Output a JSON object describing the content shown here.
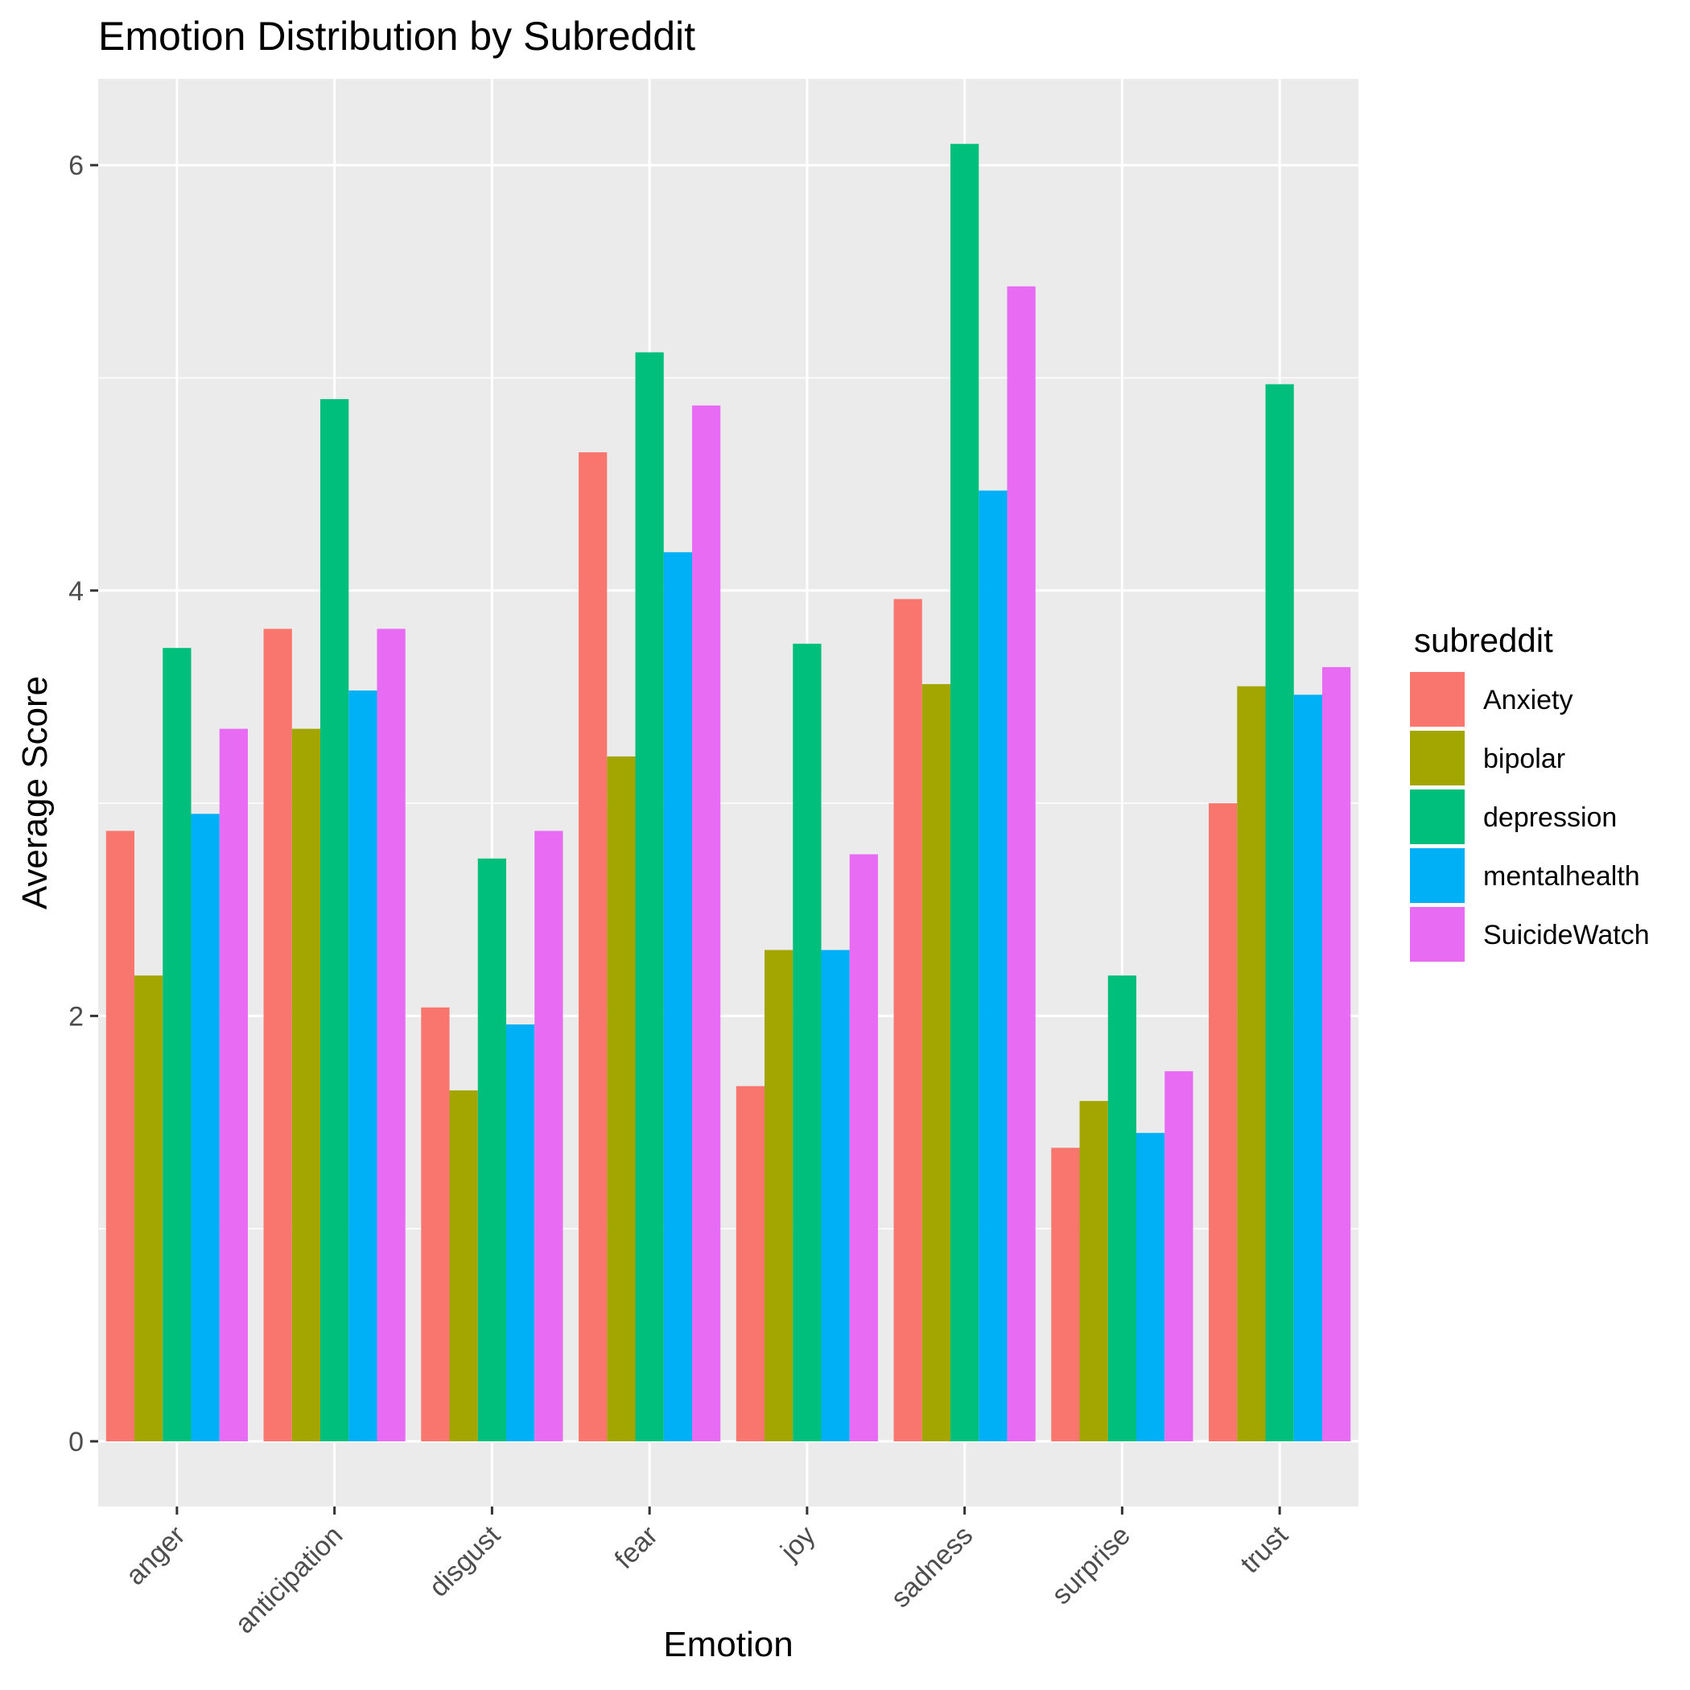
{
  "chart_data": {
    "type": "bar",
    "title": "Emotion Distribution by Subreddit",
    "xlabel": "Emotion",
    "ylabel": "Average Score",
    "categories": [
      "anger",
      "anticipation",
      "disgust",
      "fear",
      "joy",
      "sadness",
      "surprise",
      "trust"
    ],
    "yticks": [
      "0",
      "2",
      "4",
      "6"
    ],
    "ylim": [
      -0.29,
      6.3
    ],
    "grid": true,
    "legend": {
      "title": "subreddit",
      "position": "right"
    },
    "series": [
      {
        "name": "Anxiety",
        "color": "#F8766D",
        "values": [
          2.87,
          3.82,
          2.04,
          4.65,
          1.67,
          3.96,
          1.38,
          3.0
        ]
      },
      {
        "name": "bipolar",
        "color": "#A3A500",
        "values": [
          2.19,
          3.35,
          1.65,
          3.22,
          2.31,
          3.56,
          1.6,
          3.55
        ]
      },
      {
        "name": "depression",
        "color": "#00BF7D",
        "values": [
          3.73,
          4.9,
          2.74,
          5.12,
          3.75,
          6.1,
          2.19,
          4.97
        ]
      },
      {
        "name": "mentalhealth",
        "color": "#00B0F6",
        "values": [
          2.95,
          3.53,
          1.96,
          4.18,
          2.31,
          4.47,
          1.45,
          3.51
        ]
      },
      {
        "name": "SuicideWatch",
        "color": "#E76BF3",
        "values": [
          3.35,
          3.82,
          2.87,
          4.87,
          2.76,
          5.43,
          1.74,
          3.64
        ]
      }
    ]
  }
}
